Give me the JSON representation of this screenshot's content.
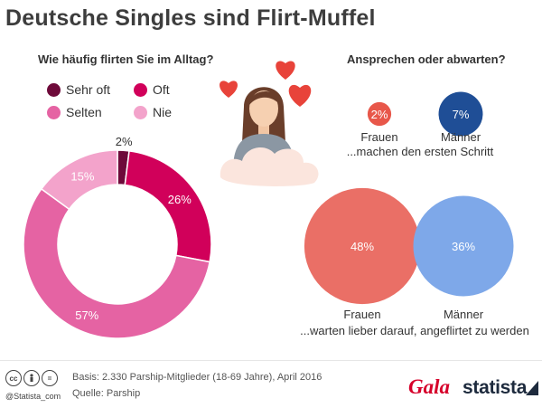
{
  "title": "Deutsche Singles sind Flirt-Muffel",
  "left_panel": {
    "subtitle": "Wie häufig flirten Sie im Alltag?"
  },
  "right_panel": {
    "subtitle": "Ansprechen oder abwarten?",
    "top_caption": "...machen den ersten Schritt",
    "bottom_caption": "...warten lieber darauf, angeflirtet zu werden"
  },
  "chart_data": [
    {
      "type": "pie",
      "subtitle": "Wie häufig flirten Sie im Alltag?",
      "categories": [
        "Sehr oft",
        "Oft",
        "Selten",
        "Nie"
      ],
      "values": [
        2,
        26,
        57,
        15
      ],
      "labels": [
        "2%",
        "26%",
        "57%",
        "15%"
      ],
      "colors": [
        "#6e0a3a",
        "#d1005a",
        "#e563a3",
        "#f3a3cb"
      ],
      "legend_position": "top",
      "unit": "%"
    },
    {
      "type": "bubble",
      "title": "Ansprechen oder abwarten?",
      "groups": [
        {
          "caption": "...machen den ersten Schritt",
          "items": [
            {
              "category": "Frauen",
              "value": 2,
              "label": "2%",
              "color": "#e8574a"
            },
            {
              "category": "Männer",
              "value": 7,
              "label": "7%",
              "color": "#1f4e96"
            }
          ]
        },
        {
          "caption": "...warten lieber darauf, angeflirtet zu werden",
          "items": [
            {
              "category": "Frauen",
              "value": 48,
              "label": "48%",
              "color": "#ea6f66"
            },
            {
              "category": "Männer",
              "value": 36,
              "label": "36%",
              "color": "#7ea8e9"
            }
          ]
        }
      ],
      "unit": "%"
    }
  ],
  "footer": {
    "basis": "Basis: 2.330 Parship-Mitglieder (18-69 Jahre), April 2016",
    "source": "Quelle: Parship",
    "handle": "@Statista_com",
    "cc_icons": [
      "cc-icon",
      "person-icon",
      "equals-icon"
    ],
    "gala_logo": "Gala",
    "statista_logo": "statista"
  }
}
